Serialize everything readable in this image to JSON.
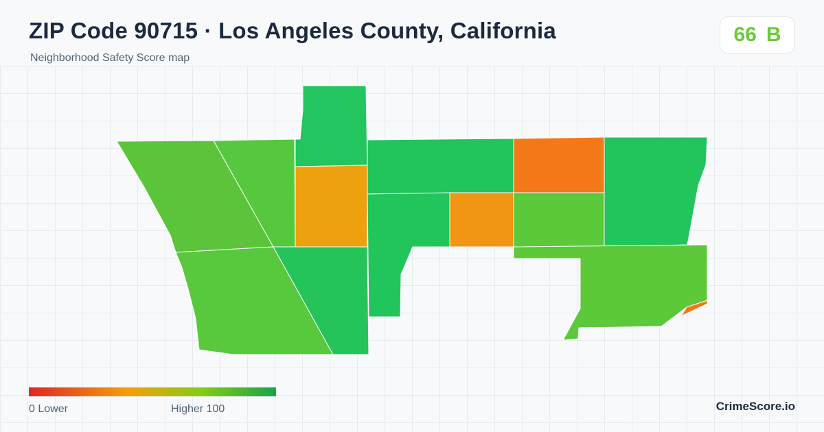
{
  "header": {
    "title": "ZIP Code 90715 · Los Angeles County, California",
    "subtitle": "Neighborhood Safety Score map"
  },
  "score": {
    "value": "66",
    "grade": "B",
    "color": "#6cc93a"
  },
  "legend": {
    "min_label": "0  Lower",
    "max_label": "Higher  100",
    "gradient_colors": [
      "#dc2626",
      "#f59e0b",
      "#84cc16",
      "#16a34a"
    ]
  },
  "brand": "CrimeScore.io",
  "regions": [
    {
      "id": "west-wedge",
      "color": "#5cc43a"
    },
    {
      "id": "west-strip",
      "color": "#55c83d"
    },
    {
      "id": "north-tower",
      "color": "#22c55e"
    },
    {
      "id": "center-west-orange",
      "color": "#eea10f"
    },
    {
      "id": "north-band",
      "color": "#22c45c"
    },
    {
      "id": "northeast-orange",
      "color": "#f47718"
    },
    {
      "id": "east-block",
      "color": "#22c45c"
    },
    {
      "id": "center-orange",
      "color": "#f19514"
    },
    {
      "id": "center-east-green",
      "color": "#5cc93a"
    },
    {
      "id": "center-south-green",
      "color": "#22c45c"
    },
    {
      "id": "southwest-block",
      "color": "#58c83c"
    },
    {
      "id": "south-center",
      "color": "#25c45a"
    },
    {
      "id": "southeast-block",
      "color": "#5dc83a"
    },
    {
      "id": "southeast-sliver",
      "color": "#f47718"
    }
  ]
}
